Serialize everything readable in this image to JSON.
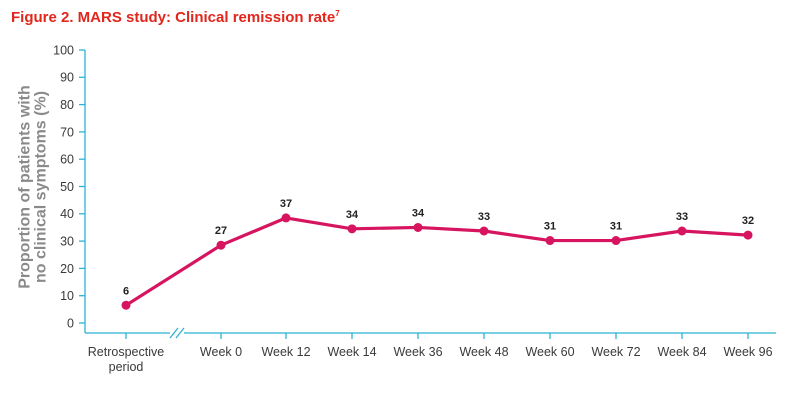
{
  "figure": {
    "title": "Figure 2. MARS study: Clinical remission rate",
    "title_superscript": "7"
  },
  "chart_data": {
    "type": "line",
    "title": "Figure 2. MARS study: Clinical remission rate",
    "ylabel": "Proportion of patients with no clinical symptoms (%)",
    "ylabel_lines": [
      "Proportion of patients with",
      "no clinical symptoms (%)"
    ],
    "xlabel": "",
    "categories": [
      "Retrospective period",
      "Week 0",
      "Week 12",
      "Week 14",
      "Week 36",
      "Week 48",
      "Week 60",
      "Week 72",
      "Week 84",
      "Week 96"
    ],
    "category_lines": [
      [
        "Retrospective",
        "period"
      ],
      [
        "Week 0"
      ],
      [
        "Week 12"
      ],
      [
        "Week 14"
      ],
      [
        "Week 36"
      ],
      [
        "Week 48"
      ],
      [
        "Week 60"
      ],
      [
        "Week 72"
      ],
      [
        "Week 84"
      ],
      [
        "Week 96"
      ]
    ],
    "series": [
      {
        "values": [
          6,
          27,
          37,
          34,
          34,
          33,
          31,
          31,
          33,
          32
        ],
        "plotted": [
          6.5,
          28.5,
          38.5,
          34.5,
          35,
          33.7,
          30.2,
          30.2,
          33.7,
          32.2
        ],
        "labels": [
          "6",
          "27",
          "37",
          "34",
          "34",
          "33",
          "31",
          "31",
          "33",
          "32"
        ]
      }
    ],
    "ylim": [
      0,
      100
    ],
    "yticks": [
      0,
      10,
      20,
      30,
      40,
      50,
      60,
      70,
      80,
      90,
      100
    ],
    "axis_break": "after first category",
    "grid": false,
    "colors": {
      "line": "#d6145f",
      "axis": "#2bb3d1",
      "title": "#e1261c",
      "ylabel": "#8a8a8a"
    }
  }
}
